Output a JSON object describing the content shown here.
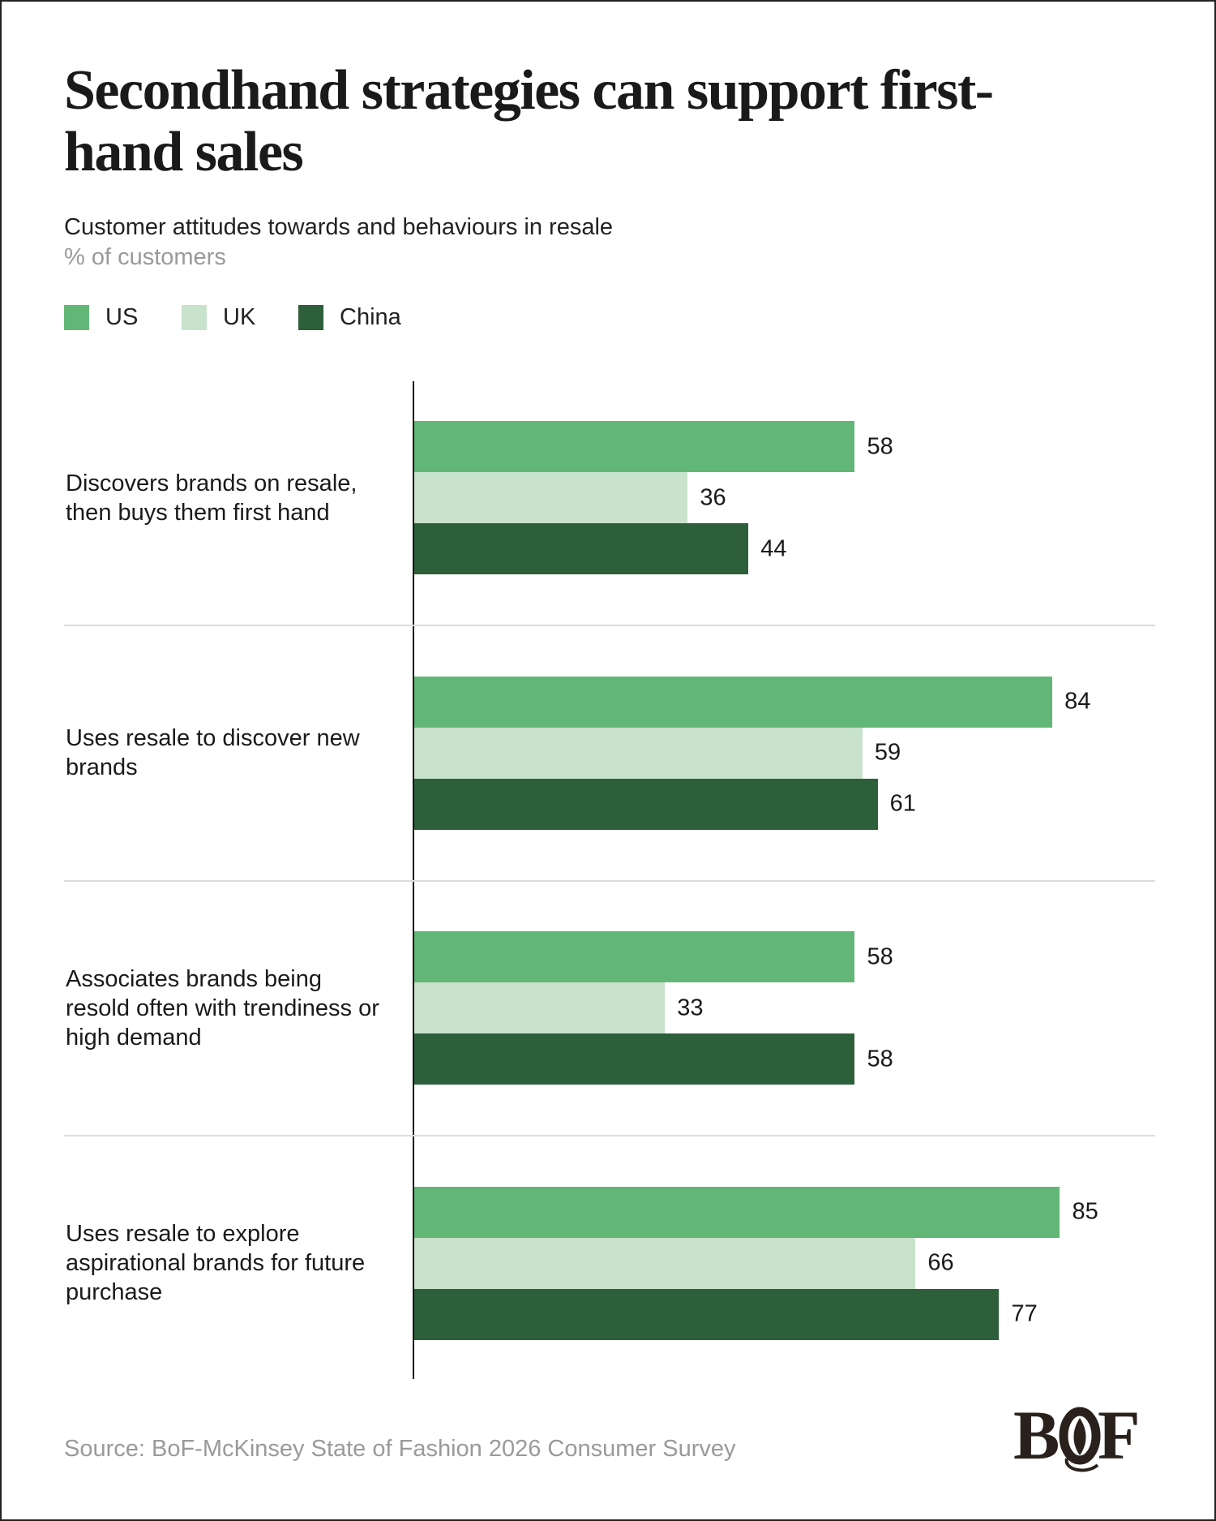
{
  "chart_data": {
    "type": "bar",
    "orientation": "horizontal",
    "title": "Secondhand strategies can support first-hand sales",
    "subtitle": "Customer attitudes towards and behaviours in resale",
    "unit": "% of customers",
    "categories": [
      "Discovers brands on resale, then buys them first hand",
      "Uses resale to discover new brands",
      "Associates brands being resold often with trendiness or high demand",
      "Uses resale to explore aspirational brands for future purchase"
    ],
    "series": [
      {
        "name": "US",
        "color": "#62b776",
        "values": [
          58,
          84,
          58,
          85
        ]
      },
      {
        "name": "UK",
        "color": "#c8e2cc",
        "values": [
          36,
          59,
          33,
          66
        ]
      },
      {
        "name": "China",
        "color": "#2d5f3a",
        "values": [
          44,
          61,
          58,
          77
        ]
      }
    ],
    "xlim": [
      0,
      100
    ],
    "grid": false,
    "legend": "top-left",
    "data_labels": true
  },
  "source": "Source: BoF-McKinsey State of Fashion 2026 Consumer Survey",
  "logo": "BoF"
}
